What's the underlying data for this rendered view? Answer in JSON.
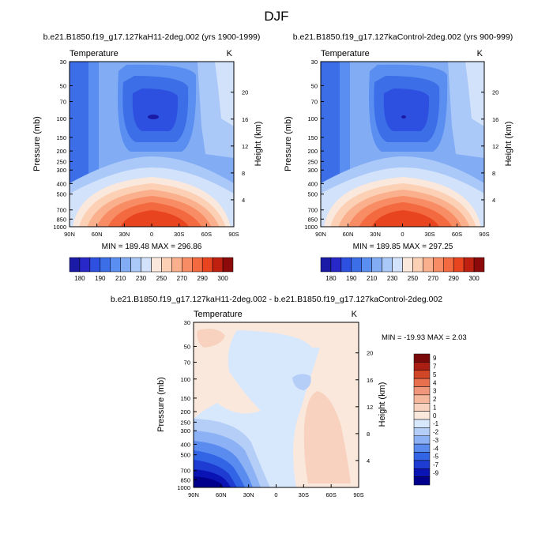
{
  "figure": {
    "title": "DJF"
  },
  "colors": {
    "abs": [
      "#1a1aa6",
      "#2828c8",
      "#2d50e0",
      "#3c6ee8",
      "#5a8ef0",
      "#82acf4",
      "#aac8f8",
      "#d2e2fb",
      "#fbe8dc",
      "#fcd0b4",
      "#fab08c",
      "#f88c64",
      "#f46a40",
      "#e84420",
      "#c02010",
      "#8c0a0a"
    ],
    "diff": [
      "#00008c",
      "#0a14b4",
      "#1e3cd2",
      "#3264e6",
      "#5a8cf0",
      "#8cb2f5",
      "#b4cef8",
      "#d8e8fc",
      "#fbe8dc",
      "#f8d2be",
      "#f5b89c",
      "#f0967a",
      "#e8704e",
      "#d24628",
      "#aa1e14",
      "#7a0a0a"
    ]
  },
  "chart_data": [
    {
      "type": "contour",
      "title": "b.e21.B1850.f19_g17.127kaH11-2deg.002 (yrs 1900-1999)",
      "left_label": "Temperature",
      "right_label": "K",
      "xlabel": "",
      "ylabel": "Pressure (mb)",
      "ylabel_right": "Height (km)",
      "x_ticks": [
        "90N",
        "60N",
        "30N",
        "0",
        "30S",
        "60S",
        "90S"
      ],
      "y_ticks": [
        "30",
        "50",
        "70",
        "100",
        "150",
        "200",
        "250",
        "300",
        "400",
        "500",
        "700",
        "850",
        "1000"
      ],
      "height_ticks": [
        "20",
        "16",
        "12",
        "8",
        "4"
      ],
      "min": 189.48,
      "max": 296.86,
      "minmax_text": "MIN = 189.48  MAX = 296.86",
      "colorbar_labels": [
        "180",
        "190",
        "210",
        "230",
        "250",
        "270",
        "290",
        "300"
      ]
    },
    {
      "type": "contour",
      "title": "b.e21.B1850.f19_g17.127kaControl-2deg.002 (yrs 900-999)",
      "left_label": "Temperature",
      "right_label": "K",
      "xlabel": "",
      "ylabel": "Pressure (mb)",
      "ylabel_right": "Height (km)",
      "x_ticks": [
        "90N",
        "60N",
        "30N",
        "0",
        "30S",
        "60S",
        "90S"
      ],
      "y_ticks": [
        "30",
        "50",
        "70",
        "100",
        "150",
        "200",
        "250",
        "300",
        "400",
        "500",
        "700",
        "850",
        "1000"
      ],
      "height_ticks": [
        "20",
        "16",
        "12",
        "8",
        "4"
      ],
      "min": 189.85,
      "max": 297.25,
      "minmax_text": "MIN = 189.85  MAX = 297.25",
      "colorbar_labels": [
        "180",
        "190",
        "210",
        "230",
        "250",
        "270",
        "290",
        "300"
      ]
    },
    {
      "type": "contour",
      "title": "b.e21.B1850.f19_g17.127kaH11-2deg.002 - b.e21.B1850.f19_g17.127kaControl-2deg.002",
      "left_label": "Temperature",
      "right_label": "K",
      "xlabel": "",
      "ylabel": "Pressure (mb)",
      "ylabel_right": "Height (km)",
      "x_ticks": [
        "90N",
        "60N",
        "30N",
        "0",
        "30S",
        "60S",
        "90S"
      ],
      "y_ticks": [
        "30",
        "50",
        "70",
        "100",
        "150",
        "200",
        "250",
        "300",
        "400",
        "500",
        "700",
        "850",
        "1000"
      ],
      "height_ticks": [
        "20",
        "16",
        "12",
        "8",
        "4"
      ],
      "min": -19.93,
      "max": 2.03,
      "minmax_text": "MIN = -19.93  MAX =   2.03",
      "colorbar_labels": [
        "9",
        "7",
        "5",
        "4",
        "3",
        "2",
        "1",
        "0",
        "-1",
        "-2",
        "-3",
        "-4",
        "-5",
        "-7",
        "-9"
      ]
    }
  ]
}
